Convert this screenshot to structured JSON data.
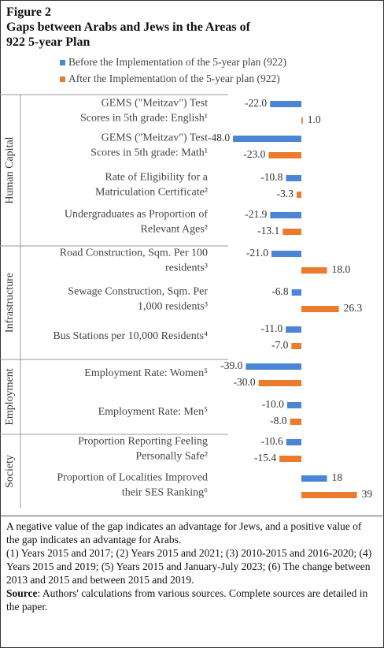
{
  "figure": {
    "label": "Figure 2",
    "title_line1": "Gaps between Arabs and Jews in the Areas of",
    "title_line2": "922 5-year Plan"
  },
  "colors": {
    "before": "#4A86D4",
    "after": "#EB7B2D"
  },
  "chart_data": {
    "type": "bar",
    "orientation": "horizontal",
    "legend_position": "top",
    "grid": false,
    "series": [
      {
        "name": "Before the Implementation of the 5-year plan (922)",
        "values": [
          -22.0,
          -48.0,
          -10.8,
          -21.9,
          -21.0,
          -6.8,
          -11.0,
          -39.0,
          -10.0,
          -10.6,
          18
        ],
        "labels": [
          "-22.0",
          "-48.0",
          "-10.8",
          "-21.9",
          "-21.0",
          "-6.8",
          "-11.0",
          "-39.0",
          "-10.0",
          "-10.6",
          "18"
        ]
      },
      {
        "name": "After the Implementation of the 5-year plan (922)",
        "values": [
          1.0,
          -23.0,
          -3.3,
          -13.1,
          18.0,
          26.3,
          -7.0,
          -30.0,
          -8.0,
          -15.4,
          39
        ],
        "labels": [
          "1.0",
          "-23.0",
          "-3.3",
          "-13.1",
          "18.0",
          "26.3",
          "-7.0",
          "-30.0",
          "-8.0",
          "-15.4",
          "39"
        ]
      }
    ],
    "categories": [
      {
        "lines": [
          "GEMS (\"Meitzav\") Test",
          "Scores in 5th grade: English¹"
        ]
      },
      {
        "lines": [
          "GEMS (\"Meitzav\") Test",
          "Scores in 5th grade: Math¹"
        ]
      },
      {
        "lines": [
          "Rate of Eligibility for a",
          "Matriculation Certificate²"
        ]
      },
      {
        "lines": [
          "Undergraduates as Proportion of",
          "Relevant Ages²"
        ]
      },
      {
        "lines": [
          "Road Construction, Sqm. Per 100",
          "residents³"
        ]
      },
      {
        "lines": [
          "Sewage Construction, Sqm. Per",
          "1,000 residents³"
        ]
      },
      {
        "lines": [
          "Bus Stations per 10,000 Residents⁴"
        ]
      },
      {
        "lines": [
          "Employment Rate: Women⁵"
        ]
      },
      {
        "lines": [
          "Employment Rate: Men⁵"
        ]
      },
      {
        "lines": [
          "Proportion Reporting Feeling",
          "Personally Safe²"
        ]
      },
      {
        "lines": [
          "Proportion of Localities Improved",
          "their SES Ranking⁶"
        ]
      }
    ],
    "groups": [
      {
        "name": "Human Capital",
        "categories": [
          0,
          1,
          2,
          3
        ]
      },
      {
        "name": "Infrastructure",
        "categories": [
          4,
          5,
          6
        ]
      },
      {
        "name": "Employment",
        "categories": [
          7,
          8
        ]
      },
      {
        "name": "Society",
        "categories": [
          9,
          10
        ]
      }
    ]
  },
  "notes": {
    "line1": "A negative value of the gap indicates an advantage for Jews, and a positive value of the gap indicates an advantage for Arabs.",
    "line2": "(1) Years 2015 and 2017; (2) Years 2015 and 2021; (3) 2010-2015 and 2016-2020; (4) Years 2015 and 2019; (5) Years 2015 and January-July 2023; (6) The change between 2013 and 2015 and between 2015 and 2019.",
    "source_label": "Source",
    "source_text": ": Authors' calculations from various sources. Complete sources are detailed in the paper."
  }
}
